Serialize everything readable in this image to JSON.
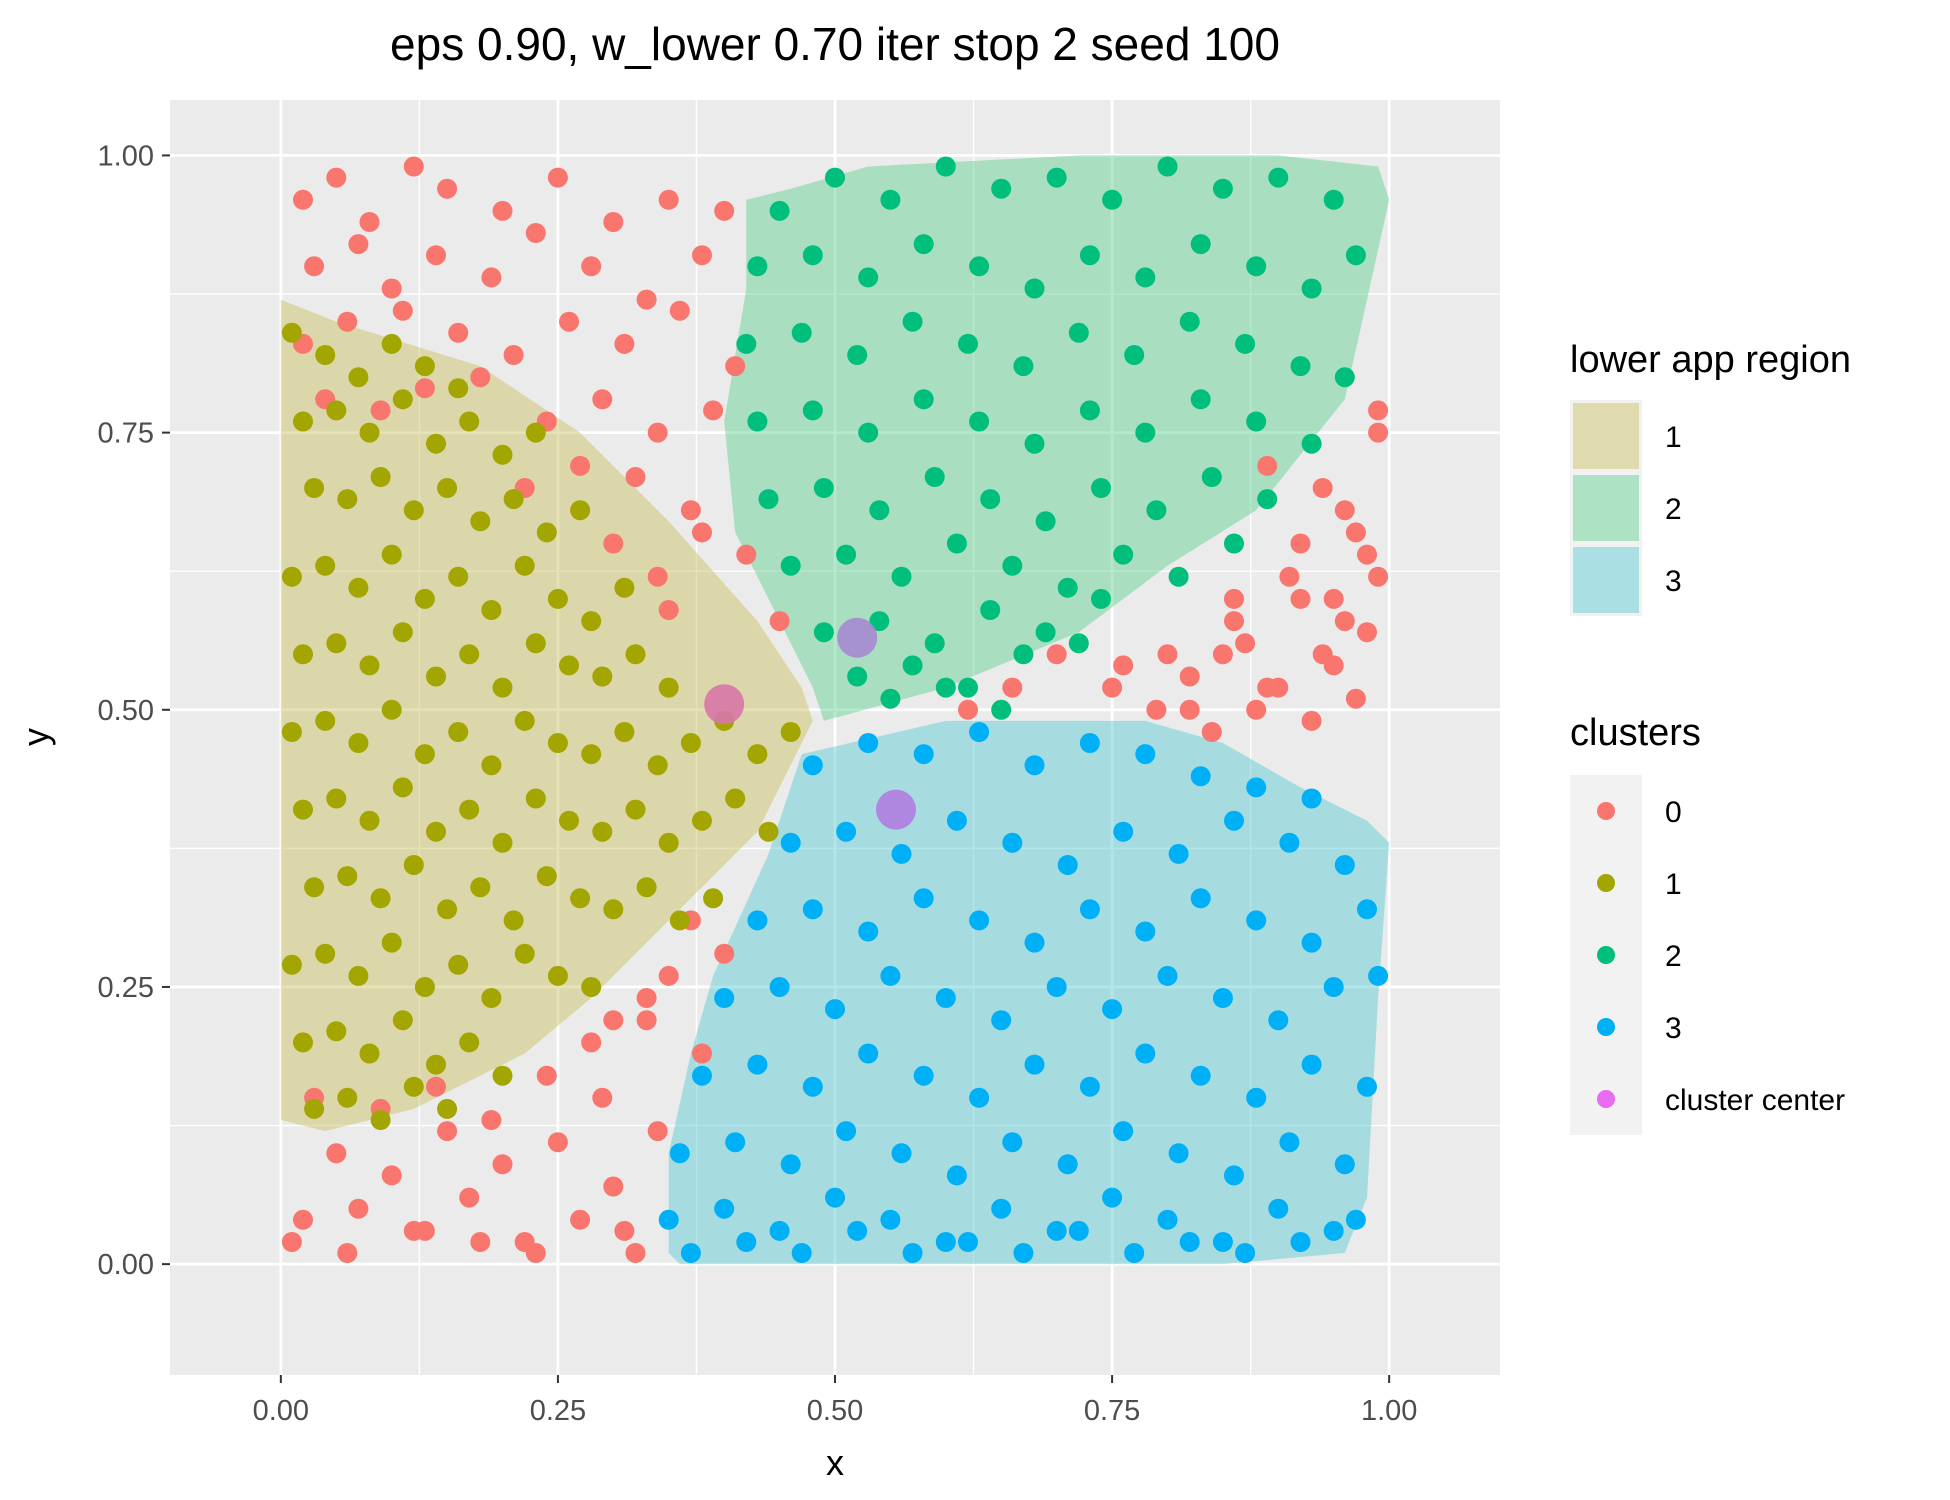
{
  "chart_data": {
    "type": "scatter",
    "title": "eps 0.90, w_lower 0.70 iter stop 2 seed 100",
    "xlabel": "x",
    "ylabel": "y",
    "xlim": [
      -0.1,
      1.1
    ],
    "ylim": [
      -0.1,
      1.05
    ],
    "x_ticks": [
      "0.00",
      "0.25",
      "0.50",
      "0.75",
      "1.00"
    ],
    "y_ticks": [
      "0.00",
      "0.25",
      "0.50",
      "0.75",
      "1.00"
    ],
    "grid": true,
    "legend_placement": "right",
    "colors": {
      "panel_background": "#ebebeb",
      "grid": "#ffffff",
      "cluster_0": "#f8766d",
      "cluster_1": "#a3a500",
      "cluster_2": "#00bf7d",
      "cluster_3": "#00b0f6",
      "cluster_center": "#e76bf3",
      "region_1": "#c9bf5a",
      "region_2": "#5ccf8c",
      "region_3": "#52c9d2"
    },
    "regions": [
      {
        "name": "1",
        "polygon": [
          [
            0.0,
            0.87
          ],
          [
            0.05,
            0.85
          ],
          [
            0.18,
            0.81
          ],
          [
            0.27,
            0.75
          ],
          [
            0.35,
            0.67
          ],
          [
            0.43,
            0.58
          ],
          [
            0.47,
            0.52
          ],
          [
            0.48,
            0.49
          ],
          [
            0.43,
            0.39
          ],
          [
            0.36,
            0.32
          ],
          [
            0.28,
            0.24
          ],
          [
            0.22,
            0.19
          ],
          [
            0.12,
            0.14
          ],
          [
            0.04,
            0.12
          ],
          [
            0.0,
            0.13
          ]
        ]
      },
      {
        "name": "2",
        "polygon": [
          [
            0.42,
            0.96
          ],
          [
            0.46,
            0.97
          ],
          [
            0.53,
            0.99
          ],
          [
            0.72,
            1.0
          ],
          [
            0.9,
            1.0
          ],
          [
            0.99,
            0.99
          ],
          [
            1.0,
            0.96
          ],
          [
            0.98,
            0.87
          ],
          [
            0.96,
            0.78
          ],
          [
            0.88,
            0.68
          ],
          [
            0.8,
            0.63
          ],
          [
            0.72,
            0.57
          ],
          [
            0.6,
            0.52
          ],
          [
            0.49,
            0.49
          ],
          [
            0.48,
            0.52
          ],
          [
            0.44,
            0.6
          ],
          [
            0.41,
            0.66
          ],
          [
            0.4,
            0.76
          ],
          [
            0.42,
            0.88
          ]
        ]
      },
      {
        "name": "3",
        "polygon": [
          [
            0.47,
            0.46
          ],
          [
            0.6,
            0.49
          ],
          [
            0.72,
            0.49
          ],
          [
            0.78,
            0.49
          ],
          [
            0.85,
            0.47
          ],
          [
            0.92,
            0.43
          ],
          [
            0.98,
            0.4
          ],
          [
            1.0,
            0.38
          ],
          [
            0.99,
            0.24
          ],
          [
            0.98,
            0.06
          ],
          [
            0.96,
            0.01
          ],
          [
            0.85,
            0.0
          ],
          [
            0.65,
            0.0
          ],
          [
            0.5,
            0.0
          ],
          [
            0.36,
            0.0
          ],
          [
            0.35,
            0.01
          ],
          [
            0.35,
            0.1
          ],
          [
            0.37,
            0.19
          ],
          [
            0.39,
            0.26
          ],
          [
            0.44,
            0.37
          ]
        ]
      }
    ],
    "series": [
      {
        "name": "0",
        "x": [
          0.02,
          0.05,
          0.08,
          0.12,
          0.15,
          0.2,
          0.25,
          0.3,
          0.35,
          0.4,
          0.03,
          0.07,
          0.1,
          0.14,
          0.19,
          0.23,
          0.28,
          0.33,
          0.38,
          0.02,
          0.06,
          0.11,
          0.16,
          0.21,
          0.26,
          0.31,
          0.36,
          0.41,
          0.04,
          0.09,
          0.13,
          0.18,
          0.24,
          0.29,
          0.34,
          0.39,
          0.22,
          0.27,
          0.32,
          0.37,
          0.3,
          0.34,
          0.38,
          0.35,
          0.42,
          0.45,
          0.05,
          0.1,
          0.15,
          0.2,
          0.25,
          0.3,
          0.02,
          0.07,
          0.12,
          0.17,
          0.22,
          0.27,
          0.32,
          0.03,
          0.09,
          0.14,
          0.19,
          0.24,
          0.29,
          0.34,
          0.28,
          0.33,
          0.38,
          0.4,
          0.37,
          0.35,
          0.33,
          0.3,
          0.01,
          0.06,
          0.13,
          0.18,
          0.23,
          0.31,
          0.85,
          0.9,
          0.95,
          0.98,
          0.88,
          0.93,
          0.97,
          0.82,
          0.87,
          0.92,
          0.96,
          0.99,
          0.79,
          0.84,
          0.89,
          0.94,
          0.98,
          0.75,
          0.8,
          0.86,
          0.91,
          0.96,
          0.7,
          0.66,
          0.62,
          0.89,
          0.94,
          0.99,
          0.92,
          0.97,
          0.86,
          0.95,
          0.99,
          0.76,
          0.82
        ],
        "y": [
          0.96,
          0.98,
          0.94,
          0.99,
          0.97,
          0.95,
          0.98,
          0.94,
          0.96,
          0.95,
          0.9,
          0.92,
          0.88,
          0.91,
          0.89,
          0.93,
          0.9,
          0.87,
          0.91,
          0.83,
          0.85,
          0.86,
          0.84,
          0.82,
          0.85,
          0.83,
          0.86,
          0.81,
          0.78,
          0.77,
          0.79,
          0.8,
          0.76,
          0.78,
          0.75,
          0.77,
          0.7,
          0.72,
          0.71,
          0.68,
          0.65,
          0.62,
          0.66,
          0.59,
          0.64,
          0.58,
          0.1,
          0.08,
          0.12,
          0.09,
          0.11,
          0.07,
          0.04,
          0.05,
          0.03,
          0.06,
          0.02,
          0.04,
          0.01,
          0.15,
          0.14,
          0.16,
          0.13,
          0.17,
          0.15,
          0.12,
          0.2,
          0.22,
          0.19,
          0.28,
          0.31,
          0.26,
          0.24,
          0.22,
          0.02,
          0.01,
          0.03,
          0.02,
          0.01,
          0.03,
          0.55,
          0.52,
          0.54,
          0.57,
          0.5,
          0.49,
          0.51,
          0.53,
          0.56,
          0.6,
          0.58,
          0.62,
          0.5,
          0.48,
          0.52,
          0.55,
          0.64,
          0.52,
          0.55,
          0.58,
          0.62,
          0.68,
          0.55,
          0.52,
          0.5,
          0.72,
          0.7,
          0.75,
          0.65,
          0.66,
          0.6,
          0.6,
          0.77,
          0.54,
          0.5
        ]
      },
      {
        "name": "1",
        "x": [
          0.01,
          0.04,
          0.07,
          0.1,
          0.13,
          0.16,
          0.02,
          0.05,
          0.08,
          0.11,
          0.14,
          0.17,
          0.2,
          0.23,
          0.03,
          0.06,
          0.09,
          0.12,
          0.15,
          0.18,
          0.21,
          0.24,
          0.27,
          0.01,
          0.04,
          0.07,
          0.1,
          0.13,
          0.16,
          0.19,
          0.22,
          0.25,
          0.28,
          0.31,
          0.02,
          0.05,
          0.08,
          0.11,
          0.14,
          0.17,
          0.2,
          0.23,
          0.26,
          0.29,
          0.32,
          0.35,
          0.01,
          0.04,
          0.07,
          0.1,
          0.13,
          0.16,
          0.19,
          0.22,
          0.25,
          0.28,
          0.31,
          0.34,
          0.37,
          0.4,
          0.43,
          0.46,
          0.02,
          0.05,
          0.08,
          0.11,
          0.14,
          0.17,
          0.2,
          0.23,
          0.26,
          0.29,
          0.32,
          0.35,
          0.38,
          0.41,
          0.44,
          0.03,
          0.06,
          0.09,
          0.12,
          0.15,
          0.18,
          0.21,
          0.24,
          0.27,
          0.3,
          0.33,
          0.36,
          0.39,
          0.01,
          0.04,
          0.07,
          0.1,
          0.13,
          0.16,
          0.19,
          0.22,
          0.25,
          0.28,
          0.02,
          0.05,
          0.08,
          0.11,
          0.14,
          0.17,
          0.2,
          0.03,
          0.06,
          0.09,
          0.12,
          0.15
        ],
        "y": [
          0.84,
          0.82,
          0.8,
          0.83,
          0.81,
          0.79,
          0.76,
          0.77,
          0.75,
          0.78,
          0.74,
          0.76,
          0.73,
          0.75,
          0.7,
          0.69,
          0.71,
          0.68,
          0.7,
          0.67,
          0.69,
          0.66,
          0.68,
          0.62,
          0.63,
          0.61,
          0.64,
          0.6,
          0.62,
          0.59,
          0.63,
          0.6,
          0.58,
          0.61,
          0.55,
          0.56,
          0.54,
          0.57,
          0.53,
          0.55,
          0.52,
          0.56,
          0.54,
          0.53,
          0.55,
          0.52,
          0.48,
          0.49,
          0.47,
          0.5,
          0.46,
          0.48,
          0.45,
          0.49,
          0.47,
          0.46,
          0.48,
          0.45,
          0.47,
          0.49,
          0.46,
          0.48,
          0.41,
          0.42,
          0.4,
          0.43,
          0.39,
          0.41,
          0.38,
          0.42,
          0.4,
          0.39,
          0.41,
          0.38,
          0.4,
          0.42,
          0.39,
          0.34,
          0.35,
          0.33,
          0.36,
          0.32,
          0.34,
          0.31,
          0.35,
          0.33,
          0.32,
          0.34,
          0.31,
          0.33,
          0.27,
          0.28,
          0.26,
          0.29,
          0.25,
          0.27,
          0.24,
          0.28,
          0.26,
          0.25,
          0.2,
          0.21,
          0.19,
          0.22,
          0.18,
          0.2,
          0.17,
          0.14,
          0.15,
          0.13,
          0.16,
          0.14
        ]
      },
      {
        "name": "2",
        "x": [
          0.45,
          0.5,
          0.55,
          0.6,
          0.65,
          0.7,
          0.75,
          0.8,
          0.85,
          0.9,
          0.95,
          0.43,
          0.48,
          0.53,
          0.58,
          0.63,
          0.68,
          0.73,
          0.78,
          0.83,
          0.88,
          0.93,
          0.97,
          0.42,
          0.47,
          0.52,
          0.57,
          0.62,
          0.67,
          0.72,
          0.77,
          0.82,
          0.87,
          0.92,
          0.96,
          0.43,
          0.48,
          0.53,
          0.58,
          0.63,
          0.68,
          0.73,
          0.78,
          0.83,
          0.88,
          0.93,
          0.44,
          0.49,
          0.54,
          0.59,
          0.64,
          0.69,
          0.74,
          0.79,
          0.84,
          0.89,
          0.46,
          0.51,
          0.56,
          0.61,
          0.66,
          0.71,
          0.76,
          0.81,
          0.86,
          0.49,
          0.54,
          0.59,
          0.64,
          0.69,
          0.74,
          0.52,
          0.57,
          0.62,
          0.67,
          0.72,
          0.55,
          0.6,
          0.65
        ],
        "y": [
          0.95,
          0.98,
          0.96,
          0.99,
          0.97,
          0.98,
          0.96,
          0.99,
          0.97,
          0.98,
          0.96,
          0.9,
          0.91,
          0.89,
          0.92,
          0.9,
          0.88,
          0.91,
          0.89,
          0.92,
          0.9,
          0.88,
          0.91,
          0.83,
          0.84,
          0.82,
          0.85,
          0.83,
          0.81,
          0.84,
          0.82,
          0.85,
          0.83,
          0.81,
          0.8,
          0.76,
          0.77,
          0.75,
          0.78,
          0.76,
          0.74,
          0.77,
          0.75,
          0.78,
          0.76,
          0.74,
          0.69,
          0.7,
          0.68,
          0.71,
          0.69,
          0.67,
          0.7,
          0.68,
          0.71,
          0.69,
          0.63,
          0.64,
          0.62,
          0.65,
          0.63,
          0.61,
          0.64,
          0.62,
          0.65,
          0.57,
          0.58,
          0.56,
          0.59,
          0.57,
          0.6,
          0.53,
          0.54,
          0.52,
          0.55,
          0.56,
          0.51,
          0.52,
          0.5
        ]
      },
      {
        "name": "3",
        "x": [
          0.48,
          0.53,
          0.58,
          0.63,
          0.68,
          0.73,
          0.78,
          0.83,
          0.88,
          0.93,
          0.46,
          0.51,
          0.56,
          0.61,
          0.66,
          0.71,
          0.76,
          0.81,
          0.86,
          0.91,
          0.96,
          0.43,
          0.48,
          0.53,
          0.58,
          0.63,
          0.68,
          0.73,
          0.78,
          0.83,
          0.88,
          0.93,
          0.98,
          0.4,
          0.45,
          0.5,
          0.55,
          0.6,
          0.65,
          0.7,
          0.75,
          0.8,
          0.85,
          0.9,
          0.95,
          0.99,
          0.38,
          0.43,
          0.48,
          0.53,
          0.58,
          0.63,
          0.68,
          0.73,
          0.78,
          0.83,
          0.88,
          0.93,
          0.98,
          0.36,
          0.41,
          0.46,
          0.51,
          0.56,
          0.61,
          0.66,
          0.71,
          0.76,
          0.81,
          0.86,
          0.91,
          0.96,
          0.35,
          0.4,
          0.45,
          0.5,
          0.55,
          0.6,
          0.65,
          0.7,
          0.75,
          0.8,
          0.85,
          0.9,
          0.95,
          0.37,
          0.42,
          0.47,
          0.52,
          0.57,
          0.62,
          0.67,
          0.72,
          0.77,
          0.82,
          0.87,
          0.92,
          0.97
        ],
        "y": [
          0.45,
          0.47,
          0.46,
          0.48,
          0.45,
          0.47,
          0.46,
          0.44,
          0.43,
          0.42,
          0.38,
          0.39,
          0.37,
          0.4,
          0.38,
          0.36,
          0.39,
          0.37,
          0.4,
          0.38,
          0.36,
          0.31,
          0.32,
          0.3,
          0.33,
          0.31,
          0.29,
          0.32,
          0.3,
          0.33,
          0.31,
          0.29,
          0.32,
          0.24,
          0.25,
          0.23,
          0.26,
          0.24,
          0.22,
          0.25,
          0.23,
          0.26,
          0.24,
          0.22,
          0.25,
          0.26,
          0.17,
          0.18,
          0.16,
          0.19,
          0.17,
          0.15,
          0.18,
          0.16,
          0.19,
          0.17,
          0.15,
          0.18,
          0.16,
          0.1,
          0.11,
          0.09,
          0.12,
          0.1,
          0.08,
          0.11,
          0.09,
          0.12,
          0.1,
          0.08,
          0.11,
          0.09,
          0.04,
          0.05,
          0.03,
          0.06,
          0.04,
          0.02,
          0.05,
          0.03,
          0.06,
          0.04,
          0.02,
          0.05,
          0.03,
          0.01,
          0.02,
          0.01,
          0.03,
          0.01,
          0.02,
          0.01,
          0.03,
          0.01,
          0.02,
          0.01,
          0.02,
          0.04
        ]
      },
      {
        "name": "cluster center",
        "x": [
          0.4,
          0.52,
          0.555
        ],
        "y": [
          0.505,
          0.565,
          0.41
        ]
      }
    ],
    "center_colors": [
      "#d877a8",
      "#a58ad0",
      "#b07ce0"
    ],
    "legends": [
      {
        "title": "lower app region",
        "items": [
          "1",
          "2",
          "3"
        ]
      },
      {
        "title": "clusters",
        "items": [
          "0",
          "1",
          "2",
          "3",
          "cluster center"
        ]
      }
    ]
  }
}
